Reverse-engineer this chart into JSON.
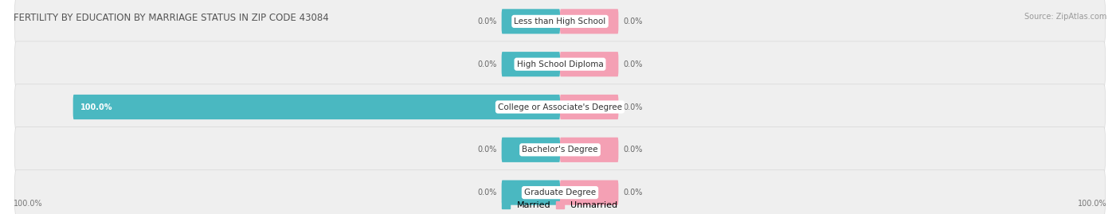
{
  "title": "FERTILITY BY EDUCATION BY MARRIAGE STATUS IN ZIP CODE 43084",
  "source": "Source: ZipAtlas.com",
  "categories": [
    "Less than High School",
    "High School Diploma",
    "College or Associate's Degree",
    "Bachelor's Degree",
    "Graduate Degree"
  ],
  "married_values": [
    0.0,
    0.0,
    100.0,
    0.0,
    0.0
  ],
  "unmarried_values": [
    0.0,
    0.0,
    0.0,
    0.0,
    0.0
  ],
  "married_color": "#4ab8c1",
  "unmarried_color": "#f4a0b4",
  "row_bg_color": "#efefef",
  "row_bg_shadow": "#e0e0e0",
  "title_color": "#555555",
  "label_color": "#666666",
  "value_label_100_color": "#ffffff",
  "axis_label_left": "100.0%",
  "axis_label_right": "100.0%",
  "background_color": "#ffffff",
  "small_bar_width": 12,
  "full_bar_max": 100,
  "figsize": [
    14.06,
    2.69
  ],
  "dpi": 100
}
